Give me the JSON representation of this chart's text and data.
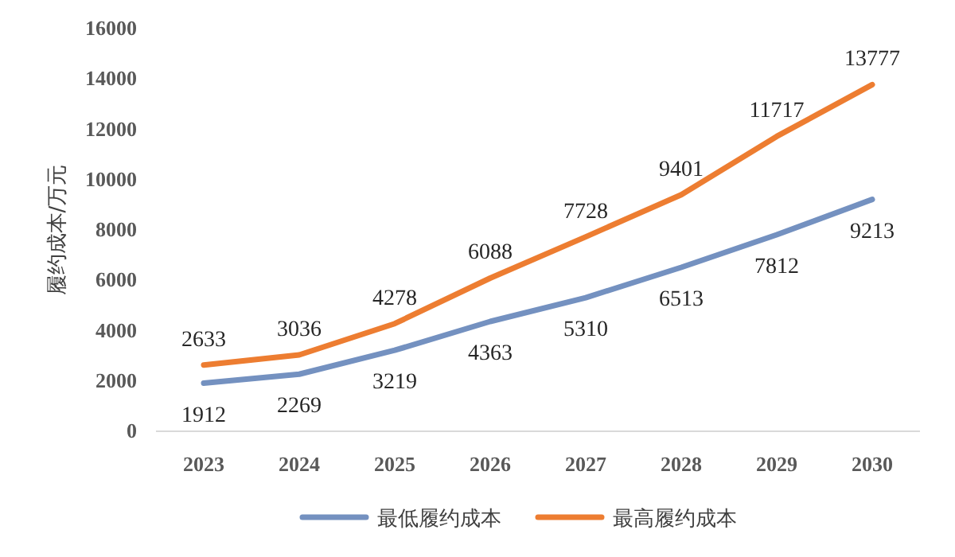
{
  "chart_data": {
    "type": "line",
    "ylabel": "履约成本/万元",
    "categories": [
      "2023",
      "2024",
      "2025",
      "2026",
      "2027",
      "2028",
      "2029",
      "2030"
    ],
    "series": [
      {
        "name": "最低履约成本",
        "color": "#7491c0",
        "values": [
          1912,
          2269,
          3219,
          4363,
          5310,
          6513,
          7812,
          9213
        ]
      },
      {
        "name": "最高履约成本",
        "color": "#ed7d31",
        "values": [
          2633,
          3036,
          4278,
          6088,
          7728,
          9401,
          11717,
          13777
        ]
      }
    ],
    "ylim": [
      0,
      16000
    ],
    "yticks": [
      0,
      2000,
      4000,
      6000,
      8000,
      10000,
      12000,
      14000,
      16000
    ],
    "grid": false,
    "legend": "bottom",
    "data_labels": true,
    "marker": "none",
    "line_style": "solid"
  }
}
